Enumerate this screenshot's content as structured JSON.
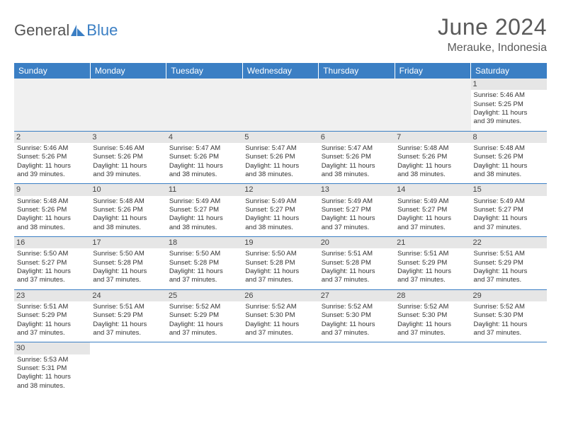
{
  "brand": {
    "part1": "General",
    "part2": "Blue",
    "text_color1": "#555555",
    "text_color2": "#3b7fc4",
    "icon_color": "#3b7fc4"
  },
  "title": "June 2024",
  "location": "Merauke, Indonesia",
  "colors": {
    "header_bg": "#3b7fc4",
    "header_text": "#ffffff",
    "daynum_bg": "#e6e6e6",
    "empty_bg": "#f0f0f0",
    "cell_border": "#3b7fc4",
    "body_text": "#333333"
  },
  "daysOfWeek": [
    "Sunday",
    "Monday",
    "Tuesday",
    "Wednesday",
    "Thursday",
    "Friday",
    "Saturday"
  ],
  "weeks": [
    [
      null,
      null,
      null,
      null,
      null,
      null,
      {
        "n": "1",
        "sr": "Sunrise: 5:46 AM",
        "ss": "Sunset: 5:25 PM",
        "d1": "Daylight: 11 hours",
        "d2": "and 39 minutes."
      }
    ],
    [
      {
        "n": "2",
        "sr": "Sunrise: 5:46 AM",
        "ss": "Sunset: 5:26 PM",
        "d1": "Daylight: 11 hours",
        "d2": "and 39 minutes."
      },
      {
        "n": "3",
        "sr": "Sunrise: 5:46 AM",
        "ss": "Sunset: 5:26 PM",
        "d1": "Daylight: 11 hours",
        "d2": "and 39 minutes."
      },
      {
        "n": "4",
        "sr": "Sunrise: 5:47 AM",
        "ss": "Sunset: 5:26 PM",
        "d1": "Daylight: 11 hours",
        "d2": "and 38 minutes."
      },
      {
        "n": "5",
        "sr": "Sunrise: 5:47 AM",
        "ss": "Sunset: 5:26 PM",
        "d1": "Daylight: 11 hours",
        "d2": "and 38 minutes."
      },
      {
        "n": "6",
        "sr": "Sunrise: 5:47 AM",
        "ss": "Sunset: 5:26 PM",
        "d1": "Daylight: 11 hours",
        "d2": "and 38 minutes."
      },
      {
        "n": "7",
        "sr": "Sunrise: 5:48 AM",
        "ss": "Sunset: 5:26 PM",
        "d1": "Daylight: 11 hours",
        "d2": "and 38 minutes."
      },
      {
        "n": "8",
        "sr": "Sunrise: 5:48 AM",
        "ss": "Sunset: 5:26 PM",
        "d1": "Daylight: 11 hours",
        "d2": "and 38 minutes."
      }
    ],
    [
      {
        "n": "9",
        "sr": "Sunrise: 5:48 AM",
        "ss": "Sunset: 5:26 PM",
        "d1": "Daylight: 11 hours",
        "d2": "and 38 minutes."
      },
      {
        "n": "10",
        "sr": "Sunrise: 5:48 AM",
        "ss": "Sunset: 5:26 PM",
        "d1": "Daylight: 11 hours",
        "d2": "and 38 minutes."
      },
      {
        "n": "11",
        "sr": "Sunrise: 5:49 AM",
        "ss": "Sunset: 5:27 PM",
        "d1": "Daylight: 11 hours",
        "d2": "and 38 minutes."
      },
      {
        "n": "12",
        "sr": "Sunrise: 5:49 AM",
        "ss": "Sunset: 5:27 PM",
        "d1": "Daylight: 11 hours",
        "d2": "and 38 minutes."
      },
      {
        "n": "13",
        "sr": "Sunrise: 5:49 AM",
        "ss": "Sunset: 5:27 PM",
        "d1": "Daylight: 11 hours",
        "d2": "and 37 minutes."
      },
      {
        "n": "14",
        "sr": "Sunrise: 5:49 AM",
        "ss": "Sunset: 5:27 PM",
        "d1": "Daylight: 11 hours",
        "d2": "and 37 minutes."
      },
      {
        "n": "15",
        "sr": "Sunrise: 5:49 AM",
        "ss": "Sunset: 5:27 PM",
        "d1": "Daylight: 11 hours",
        "d2": "and 37 minutes."
      }
    ],
    [
      {
        "n": "16",
        "sr": "Sunrise: 5:50 AM",
        "ss": "Sunset: 5:27 PM",
        "d1": "Daylight: 11 hours",
        "d2": "and 37 minutes."
      },
      {
        "n": "17",
        "sr": "Sunrise: 5:50 AM",
        "ss": "Sunset: 5:28 PM",
        "d1": "Daylight: 11 hours",
        "d2": "and 37 minutes."
      },
      {
        "n": "18",
        "sr": "Sunrise: 5:50 AM",
        "ss": "Sunset: 5:28 PM",
        "d1": "Daylight: 11 hours",
        "d2": "and 37 minutes."
      },
      {
        "n": "19",
        "sr": "Sunrise: 5:50 AM",
        "ss": "Sunset: 5:28 PM",
        "d1": "Daylight: 11 hours",
        "d2": "and 37 minutes."
      },
      {
        "n": "20",
        "sr": "Sunrise: 5:51 AM",
        "ss": "Sunset: 5:28 PM",
        "d1": "Daylight: 11 hours",
        "d2": "and 37 minutes."
      },
      {
        "n": "21",
        "sr": "Sunrise: 5:51 AM",
        "ss": "Sunset: 5:29 PM",
        "d1": "Daylight: 11 hours",
        "d2": "and 37 minutes."
      },
      {
        "n": "22",
        "sr": "Sunrise: 5:51 AM",
        "ss": "Sunset: 5:29 PM",
        "d1": "Daylight: 11 hours",
        "d2": "and 37 minutes."
      }
    ],
    [
      {
        "n": "23",
        "sr": "Sunrise: 5:51 AM",
        "ss": "Sunset: 5:29 PM",
        "d1": "Daylight: 11 hours",
        "d2": "and 37 minutes."
      },
      {
        "n": "24",
        "sr": "Sunrise: 5:51 AM",
        "ss": "Sunset: 5:29 PM",
        "d1": "Daylight: 11 hours",
        "d2": "and 37 minutes."
      },
      {
        "n": "25",
        "sr": "Sunrise: 5:52 AM",
        "ss": "Sunset: 5:29 PM",
        "d1": "Daylight: 11 hours",
        "d2": "and 37 minutes."
      },
      {
        "n": "26",
        "sr": "Sunrise: 5:52 AM",
        "ss": "Sunset: 5:30 PM",
        "d1": "Daylight: 11 hours",
        "d2": "and 37 minutes."
      },
      {
        "n": "27",
        "sr": "Sunrise: 5:52 AM",
        "ss": "Sunset: 5:30 PM",
        "d1": "Daylight: 11 hours",
        "d2": "and 37 minutes."
      },
      {
        "n": "28",
        "sr": "Sunrise: 5:52 AM",
        "ss": "Sunset: 5:30 PM",
        "d1": "Daylight: 11 hours",
        "d2": "and 37 minutes."
      },
      {
        "n": "29",
        "sr": "Sunrise: 5:52 AM",
        "ss": "Sunset: 5:30 PM",
        "d1": "Daylight: 11 hours",
        "d2": "and 37 minutes."
      }
    ],
    [
      {
        "n": "30",
        "sr": "Sunrise: 5:53 AM",
        "ss": "Sunset: 5:31 PM",
        "d1": "Daylight: 11 hours",
        "d2": "and 38 minutes."
      },
      null,
      null,
      null,
      null,
      null,
      null
    ]
  ]
}
